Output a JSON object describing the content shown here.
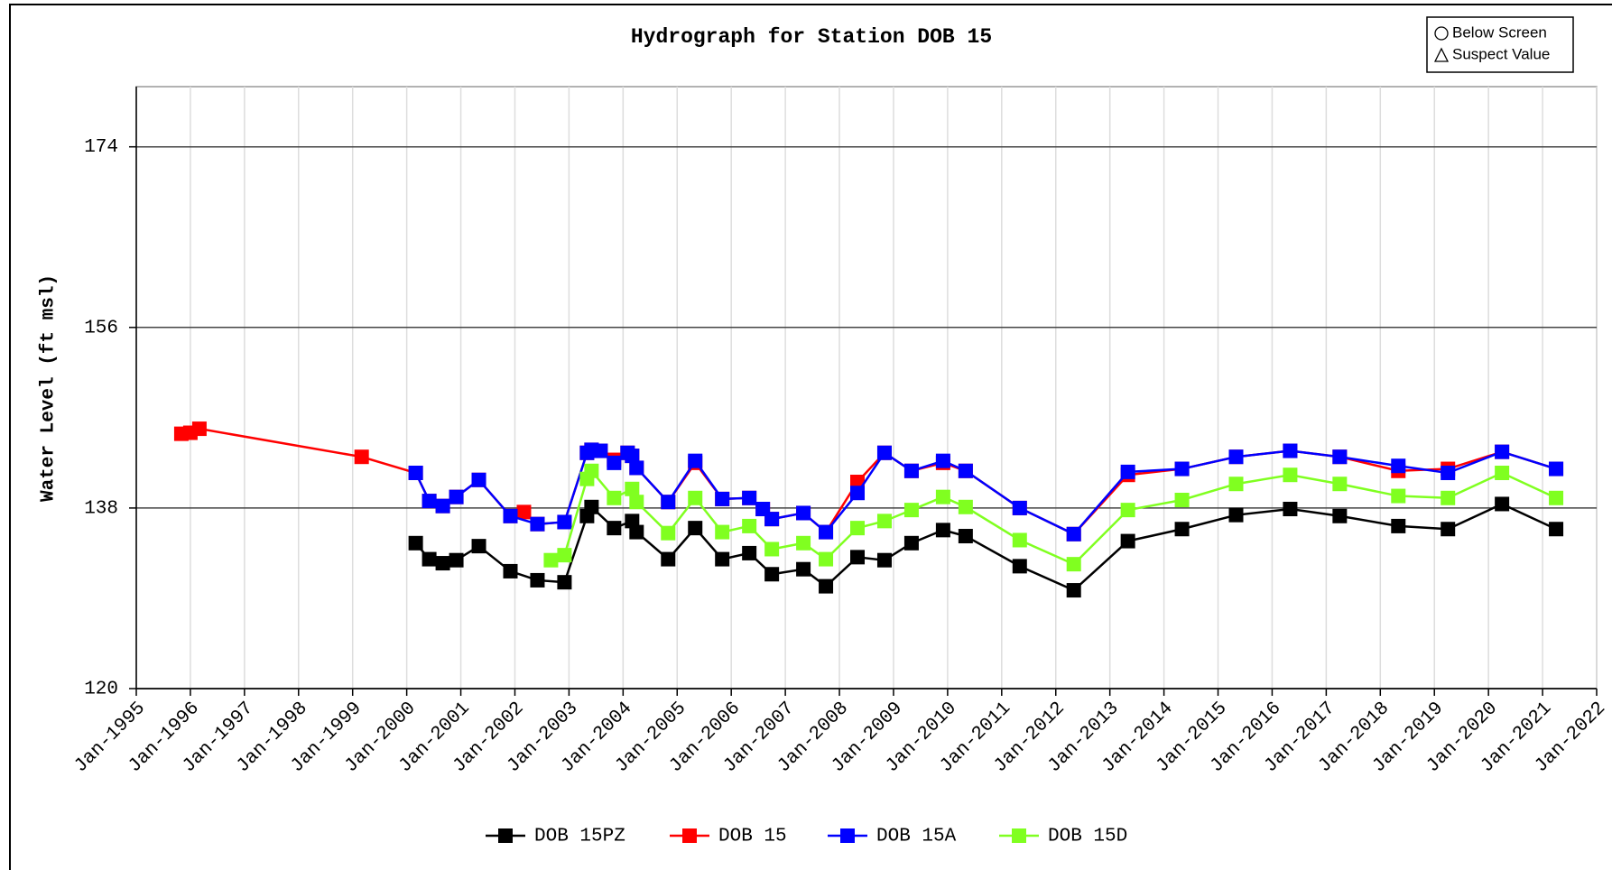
{
  "chart_data": {
    "type": "line",
    "title": "Hydrograph for Station DOB 15",
    "ylabel": "Water Level (ft msl)",
    "symbol_key": [
      "Below Screen",
      "Suspect Value"
    ],
    "ylim": [
      120,
      180
    ],
    "yticks": [
      120,
      138,
      156,
      174
    ],
    "grid": true,
    "legend": "bottom",
    "xlim": [
      "1995-01",
      "2022-01"
    ],
    "xticks": [
      {
        "value": "1995-01",
        "label": "Jan-1995"
      },
      {
        "value": "1996-01",
        "label": "Jan-1996"
      },
      {
        "value": "1997-01",
        "label": "Jan-1997"
      },
      {
        "value": "1998-01",
        "label": "Jan-1998"
      },
      {
        "value": "1999-01",
        "label": "Jan-1999"
      },
      {
        "value": "2000-01",
        "label": "Jan-2000"
      },
      {
        "value": "2001-01",
        "label": "Jan-2001"
      },
      {
        "value": "2002-01",
        "label": "Jan-2002"
      },
      {
        "value": "2003-01",
        "label": "Jan-2003"
      },
      {
        "value": "2004-01",
        "label": "Jan-2004"
      },
      {
        "value": "2005-01",
        "label": "Jan-2005"
      },
      {
        "value": "2006-01",
        "label": "Jan-2006"
      },
      {
        "value": "2007-01",
        "label": "Jan-2007"
      },
      {
        "value": "2008-01",
        "label": "Jan-2008"
      },
      {
        "value": "2009-01",
        "label": "Jan-2009"
      },
      {
        "value": "2010-01",
        "label": "Jan-2010"
      },
      {
        "value": "2011-01",
        "label": "Jan-2011"
      },
      {
        "value": "2012-01",
        "label": "Jan-2012"
      },
      {
        "value": "2013-01",
        "label": "Jan-2013"
      },
      {
        "value": "2014-01",
        "label": "Jan-2014"
      },
      {
        "value": "2015-01",
        "label": "Jan-2015"
      },
      {
        "value": "2016-01",
        "label": "Jan-2016"
      },
      {
        "value": "2017-01",
        "label": "Jan-2017"
      },
      {
        "value": "2018-01",
        "label": "Jan-2018"
      },
      {
        "value": "2019-01",
        "label": "Jan-2019"
      },
      {
        "value": "2020-01",
        "label": "Jan-2020"
      },
      {
        "value": "2021-01",
        "label": "Jan-2021"
      },
      {
        "value": "2022-01",
        "label": "Jan-2022"
      }
    ],
    "series": [
      {
        "name": "DOB 15PZ",
        "color": "#000000",
        "x": [
          "2000-03",
          "2000-06",
          "2000-09",
          "2000-12",
          "2001-05",
          "2001-12",
          "2002-06",
          "2002-12",
          "2003-05",
          "2003-06",
          "2003-11",
          "2004-03",
          "2004-04",
          "2004-11",
          "2005-05",
          "2005-11",
          "2006-05",
          "2006-10",
          "2007-05",
          "2007-10",
          "2008-05",
          "2008-11",
          "2009-05",
          "2009-12",
          "2010-05",
          "2011-05",
          "2012-05",
          "2013-05",
          "2014-05",
          "2015-05",
          "2016-05",
          "2017-04",
          "2018-05",
          "2019-04",
          "2020-04",
          "2021-04"
        ],
        "values": [
          134.5,
          132.9,
          132.5,
          132.8,
          134.2,
          131.7,
          130.8,
          130.6,
          137.2,
          138.1,
          136.0,
          136.7,
          135.6,
          132.9,
          136.0,
          132.9,
          133.5,
          131.4,
          131.9,
          130.2,
          133.1,
          132.8,
          134.5,
          135.8,
          135.2,
          132.2,
          129.8,
          134.7,
          135.9,
          137.3,
          137.9,
          137.2,
          136.2,
          135.9,
          138.4,
          135.9
        ]
      },
      {
        "name": "DOB 15",
        "color": "#ff0000",
        "x": [
          "1995-11",
          "1996-01",
          "1996-03",
          "1999-03",
          "2000-03",
          "2000-06",
          "2000-09",
          "2000-12",
          "2001-05",
          "2001-12",
          "2002-03",
          "2002-06",
          "2002-12",
          "2003-05",
          "2003-06",
          "2003-08",
          "2003-11",
          "2004-02",
          "2004-03",
          "2004-04",
          "2004-11",
          "2005-05",
          "2005-11",
          "2006-05",
          "2006-08",
          "2006-10",
          "2007-05",
          "2007-10",
          "2008-05",
          "2008-11",
          "2009-05",
          "2009-12",
          "2010-05",
          "2011-05",
          "2012-05",
          "2013-05",
          "2014-05",
          "2015-05",
          "2016-05",
          "2017-04",
          "2018-05",
          "2019-04",
          "2020-04",
          "2021-04"
        ],
        "values": [
          145.4,
          145.5,
          145.9,
          143.1,
          141.5,
          138.7,
          138.2,
          139.1,
          140.8,
          137.2,
          137.6,
          136.4,
          136.6,
          143.5,
          143.8,
          143.7,
          142.8,
          143.5,
          143.2,
          142.0,
          138.6,
          142.5,
          138.9,
          139.0,
          137.9,
          136.9,
          137.5,
          135.6,
          140.6,
          143.5,
          141.7,
          142.5,
          141.7,
          138.0,
          135.4,
          141.3,
          141.9,
          143.1,
          143.7,
          143.1,
          141.7,
          141.9,
          143.6,
          141.9
        ]
      },
      {
        "name": "DOB 15A",
        "color": "#0000ff",
        "x": [
          "2000-03",
          "2000-06",
          "2000-09",
          "2000-12",
          "2001-05",
          "2001-12",
          "2002-06",
          "2002-12",
          "2003-05",
          "2003-06",
          "2003-08",
          "2003-11",
          "2004-02",
          "2004-03",
          "2004-04",
          "2004-11",
          "2005-05",
          "2005-11",
          "2006-05",
          "2006-08",
          "2006-10",
          "2007-05",
          "2007-10",
          "2008-05",
          "2008-11",
          "2009-05",
          "2009-12",
          "2010-05",
          "2011-05",
          "2012-05",
          "2013-05",
          "2014-05",
          "2015-05",
          "2016-05",
          "2017-04",
          "2018-05",
          "2019-04",
          "2020-04",
          "2021-04"
        ],
        "values": [
          141.5,
          138.7,
          138.2,
          139.1,
          140.8,
          137.2,
          136.4,
          136.6,
          143.5,
          143.8,
          143.7,
          142.5,
          143.5,
          143.2,
          142.0,
          138.6,
          142.7,
          138.9,
          139.0,
          137.9,
          136.9,
          137.5,
          135.6,
          139.5,
          143.5,
          141.7,
          142.7,
          141.7,
          138.0,
          135.4,
          141.6,
          141.9,
          143.1,
          143.7,
          143.1,
          142.2,
          141.5,
          143.6,
          141.9
        ]
      },
      {
        "name": "DOB 15D",
        "color": "#80ff20",
        "x": [
          "2002-09",
          "2002-12",
          "2003-05",
          "2003-06",
          "2003-11",
          "2004-03",
          "2004-04",
          "2004-11",
          "2005-05",
          "2005-11",
          "2006-05",
          "2006-10",
          "2007-05",
          "2007-10",
          "2008-05",
          "2008-11",
          "2009-05",
          "2009-12",
          "2010-05",
          "2011-05",
          "2012-05",
          "2013-05",
          "2014-05",
          "2015-05",
          "2016-05",
          "2017-04",
          "2018-05",
          "2019-04",
          "2020-04",
          "2021-04"
        ],
        "values": [
          132.8,
          133.3,
          140.9,
          141.7,
          139.0,
          139.9,
          138.6,
          135.5,
          139.0,
          135.6,
          136.2,
          133.9,
          134.5,
          132.9,
          136.0,
          136.7,
          137.8,
          139.1,
          138.1,
          134.8,
          132.4,
          137.8,
          138.8,
          140.4,
          141.3,
          140.4,
          139.2,
          139.0,
          141.5,
          139.0
        ]
      }
    ]
  }
}
